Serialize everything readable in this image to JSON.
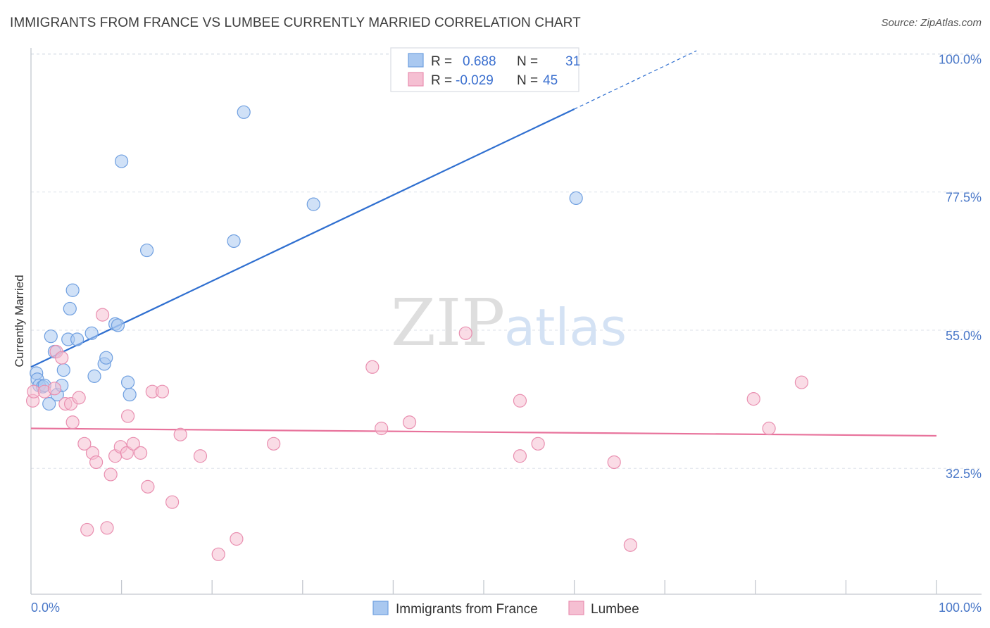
{
  "header": {
    "title": "IMMIGRANTS FROM FRANCE VS LUMBEE CURRENTLY MARRIED CORRELATION CHART",
    "source": "Source: ZipAtlas.com"
  },
  "watermark": {
    "zip": "ZIP",
    "atlas": "atlas"
  },
  "legend_box": {
    "rows": [
      {
        "r_label": "R =",
        "r_value": "0.688",
        "n_label": "N =",
        "n_value": "31"
      },
      {
        "r_label": "R =",
        "r_value": "-0.029",
        "n_label": "N =",
        "n_value": "45"
      }
    ]
  },
  "bottom_legend": {
    "items": [
      "Immigrants from France",
      "Lumbee"
    ]
  },
  "colors": {
    "blue_fill": "#a9c8f0",
    "blue_stroke": "#6f9fe0",
    "blue_line": "#2f6fd0",
    "pink_fill": "#f5bfd2",
    "pink_stroke": "#e98fb0",
    "pink_line": "#e8739c",
    "tick_text": "#4a78c8",
    "grid": "#dde2ea"
  },
  "chart_data": {
    "type": "scatter",
    "title": "IMMIGRANTS FROM FRANCE VS LUMBEE CURRENTLY MARRIED CORRELATION CHART",
    "xlabel": "",
    "ylabel": "Currently Married",
    "xlim": [
      0,
      100
    ],
    "ylim": [
      12,
      102
    ],
    "x_tick_labels": [
      "0.0%",
      "100.0%"
    ],
    "y_ticks": [
      32.5,
      55.0,
      77.5,
      100.0
    ],
    "y_tick_labels": [
      "32.5%",
      "55.0%",
      "77.5%",
      "100.0%"
    ],
    "grid": true,
    "legend_position": "top-center",
    "series": [
      {
        "name": "Immigrants from France",
        "color": "#6f9fe0",
        "points": [
          {
            "x": 0.6,
            "y": 48.0
          },
          {
            "x": 0.7,
            "y": 47.0
          },
          {
            "x": 0.9,
            "y": 46.0
          },
          {
            "x": 1.3,
            "y": 45.8
          },
          {
            "x": 1.5,
            "y": 46.0
          },
          {
            "x": 2.0,
            "y": 43.0
          },
          {
            "x": 2.2,
            "y": 54.0
          },
          {
            "x": 2.6,
            "y": 51.5
          },
          {
            "x": 2.9,
            "y": 44.5
          },
          {
            "x": 3.4,
            "y": 46.0
          },
          {
            "x": 3.6,
            "y": 48.5
          },
          {
            "x": 4.1,
            "y": 53.5
          },
          {
            "x": 4.3,
            "y": 58.5
          },
          {
            "x": 4.6,
            "y": 61.5
          },
          {
            "x": 5.1,
            "y": 53.5
          },
          {
            "x": 6.7,
            "y": 54.5
          },
          {
            "x": 7.0,
            "y": 47.5
          },
          {
            "x": 8.1,
            "y": 49.5
          },
          {
            "x": 8.3,
            "y": 50.5
          },
          {
            "x": 9.3,
            "y": 56.0
          },
          {
            "x": 9.6,
            "y": 55.8
          },
          {
            "x": 10.0,
            "y": 82.5
          },
          {
            "x": 10.7,
            "y": 46.5
          },
          {
            "x": 10.9,
            "y": 44.5
          },
          {
            "x": 12.8,
            "y": 68.0
          },
          {
            "x": 22.4,
            "y": 69.5
          },
          {
            "x": 23.5,
            "y": 90.5
          },
          {
            "x": 31.2,
            "y": 75.5
          },
          {
            "x": 60.2,
            "y": 76.5
          }
        ],
        "trend_line": {
          "x": [
            0,
            60
          ],
          "y": [
            49.0,
            91.0
          ],
          "dashed_extension": {
            "x": [
              60,
              73.5
            ],
            "y": [
              91.0,
              100.5
            ]
          }
        }
      },
      {
        "name": "Lumbee",
        "color": "#e98fb0",
        "points": [
          {
            "x": 0.2,
            "y": 43.5
          },
          {
            "x": 0.3,
            "y": 45.0
          },
          {
            "x": 1.5,
            "y": 45.0
          },
          {
            "x": 2.6,
            "y": 45.5
          },
          {
            "x": 2.8,
            "y": 51.5
          },
          {
            "x": 3.4,
            "y": 50.5
          },
          {
            "x": 3.8,
            "y": 43.0
          },
          {
            "x": 4.4,
            "y": 43.0
          },
          {
            "x": 4.6,
            "y": 40.0
          },
          {
            "x": 5.3,
            "y": 44.0
          },
          {
            "x": 5.9,
            "y": 36.5
          },
          {
            "x": 6.2,
            "y": 22.5
          },
          {
            "x": 6.8,
            "y": 35.0
          },
          {
            "x": 7.2,
            "y": 33.5
          },
          {
            "x": 7.9,
            "y": 57.5
          },
          {
            "x": 8.4,
            "y": 22.8
          },
          {
            "x": 8.8,
            "y": 31.5
          },
          {
            "x": 9.3,
            "y": 34.5
          },
          {
            "x": 9.9,
            "y": 36.0
          },
          {
            "x": 10.6,
            "y": 35.0
          },
          {
            "x": 10.7,
            "y": 41.0
          },
          {
            "x": 11.3,
            "y": 36.5
          },
          {
            "x": 12.1,
            "y": 35.0
          },
          {
            "x": 12.9,
            "y": 29.5
          },
          {
            "x": 13.4,
            "y": 45.0
          },
          {
            "x": 14.5,
            "y": 45.0
          },
          {
            "x": 15.6,
            "y": 27.0
          },
          {
            "x": 16.5,
            "y": 38.0
          },
          {
            "x": 18.7,
            "y": 34.5
          },
          {
            "x": 20.7,
            "y": 18.5
          },
          {
            "x": 22.7,
            "y": 21.0
          },
          {
            "x": 26.8,
            "y": 36.5
          },
          {
            "x": 37.7,
            "y": 49.0
          },
          {
            "x": 38.7,
            "y": 39.0
          },
          {
            "x": 41.8,
            "y": 40.0
          },
          {
            "x": 48.0,
            "y": 54.5
          },
          {
            "x": 54.0,
            "y": 43.5
          },
          {
            "x": 54.0,
            "y": 34.5
          },
          {
            "x": 56.0,
            "y": 36.5
          },
          {
            "x": 64.4,
            "y": 33.5
          },
          {
            "x": 66.2,
            "y": 20.0
          },
          {
            "x": 79.8,
            "y": 43.8
          },
          {
            "x": 81.5,
            "y": 39.0
          },
          {
            "x": 85.1,
            "y": 46.5
          }
        ],
        "trend_line": {
          "x": [
            0,
            100
          ],
          "y": [
            39.0,
            37.8
          ]
        }
      }
    ]
  }
}
